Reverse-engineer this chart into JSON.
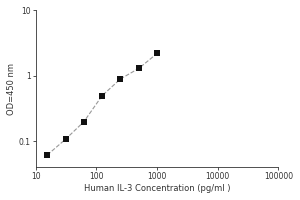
{
  "x_values": [
    15.6,
    31.2,
    62.5,
    125,
    250,
    500,
    1000
  ],
  "y_values": [
    0.062,
    0.108,
    0.2,
    0.5,
    0.9,
    1.3,
    2.2
  ],
  "x_label": "Human IL-3 Concentration (pg/ml )",
  "y_label": "OD=450 nm",
  "x_lim": [
    10,
    100000
  ],
  "y_lim": [
    0.04,
    10
  ],
  "line_color": "#999999",
  "marker_color": "#111111",
  "background_color": "#ffffff",
  "marker_style": "s",
  "marker_size": 4,
  "line_style": "--",
  "line_width": 0.8,
  "x_ticks": [
    10,
    100,
    1000,
    10000,
    100000
  ],
  "y_ticks": [
    0.1,
    1,
    10
  ],
  "y_tick_labels": [
    "0.1",
    "1",
    "10"
  ],
  "label_fontsize": 6,
  "tick_fontsize": 5.5
}
